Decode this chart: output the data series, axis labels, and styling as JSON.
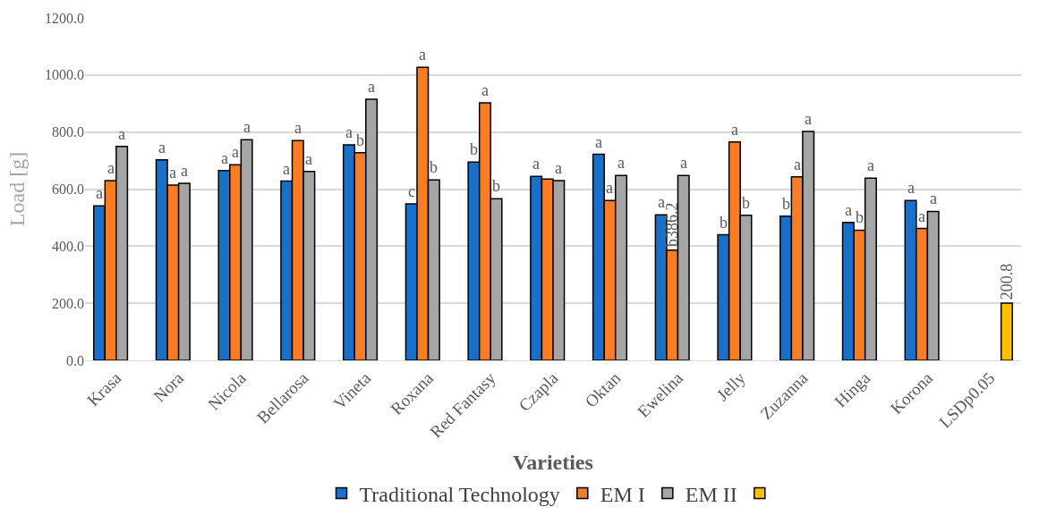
{
  "chart_data": {
    "type": "bar",
    "xlabel": "Varieties",
    "ylabel": "Load [g]",
    "categories": [
      "Krasa",
      "Nora",
      "Nicola",
      "Bellarosa",
      "Vineta",
      "Roxana",
      "Red Fantasy",
      "Czapla",
      "Oktan",
      "Ewelina",
      "Jelly",
      "Zuzanna",
      "Hinga",
      "Korona",
      "LSDp0.05"
    ],
    "series": [
      {
        "name": "Traditional Technology",
        "color": "#1870c8",
        "values": [
          541,
          703,
          665,
          628,
          755,
          548,
          695,
          645,
          722,
          510,
          440,
          505,
          483,
          560,
          null
        ],
        "value_labels": [
          "a",
          "a",
          "a",
          "a",
          "a",
          "c",
          "b",
          "a",
          "a",
          "a",
          "b",
          "b",
          "a",
          "a",
          null
        ]
      },
      {
        "name": "EM I",
        "color": "#fa7d24",
        "values": [
          630,
          614,
          685,
          770,
          728,
          1027,
          902,
          635,
          560,
          386.2,
          765,
          643,
          456,
          462,
          null
        ],
        "value_labels": [
          "a",
          "a",
          "a",
          "a",
          "b",
          "a",
          "a",
          null,
          "a",
          "b386.2",
          "a",
          "a",
          "b",
          "a",
          null
        ]
      },
      {
        "name": "EM II",
        "color": "#a5a5a5",
        "values": [
          750,
          620,
          773,
          662,
          915,
          632,
          566,
          630,
          648,
          648,
          508,
          802,
          638,
          522,
          null
        ],
        "value_labels": [
          "a",
          "a",
          "a",
          "a",
          "a",
          "b",
          "b",
          "a",
          "a",
          "a",
          "b",
          "a",
          "a",
          "a",
          null
        ]
      },
      {
        "color": "#ffc000",
        "values": [
          null,
          null,
          null,
          null,
          null,
          null,
          null,
          null,
          null,
          null,
          null,
          null,
          null,
          null,
          200.8
        ],
        "value_labels": [
          null,
          null,
          null,
          null,
          null,
          null,
          null,
          null,
          null,
          null,
          null,
          null,
          null,
          null,
          "200.8"
        ]
      }
    ],
    "ylim": [
      0,
      1200
    ],
    "yticks": [
      {
        "value": 0,
        "label": "0.0"
      },
      {
        "value": 200,
        "label": "200.0"
      },
      {
        "value": 400,
        "label": "400.0"
      },
      {
        "value": 600,
        "label": "600.0"
      },
      {
        "value": 800,
        "label": "800.0"
      },
      {
        "value": 1000,
        "label": "1000.0"
      },
      {
        "value": 1200,
        "label": "1200.0"
      }
    ],
    "grid": "y",
    "legend": "bottom"
  }
}
